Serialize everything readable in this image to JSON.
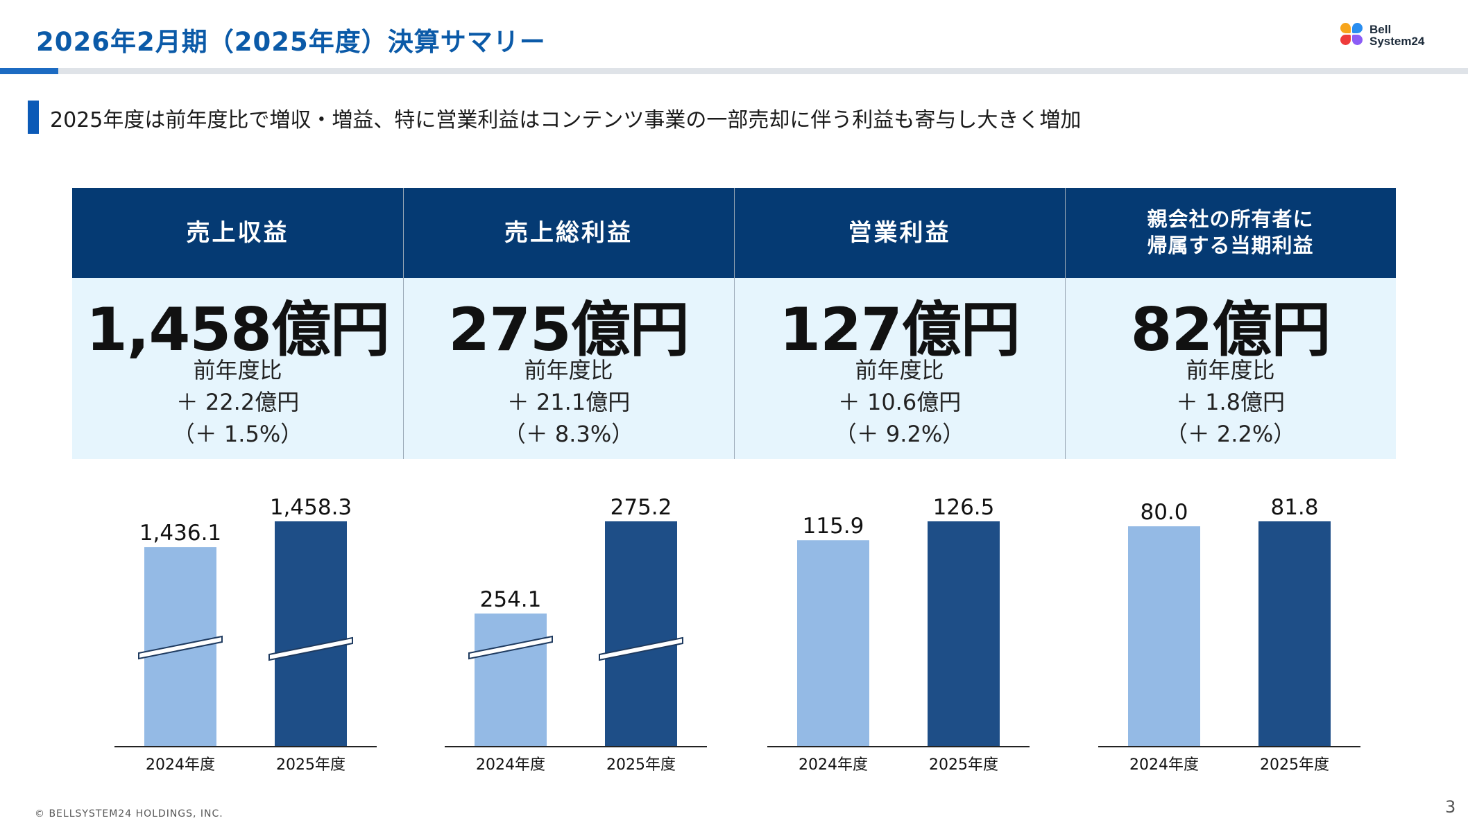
{
  "header": {
    "title": "2026年2月期（2025年度）決算サマリー",
    "logo_text_line1": "Bell",
    "logo_text_line2": "System24"
  },
  "subtitle": "2025年度は前年度比で増収・増益、特に営業利益はコンテンツ事業の一部売却に伴う利益も寄与し大きく増加",
  "kpis": [
    {
      "head_line1": "売上収益",
      "head_line2": "",
      "big": "1,458億円",
      "cmp_label": "前年度比",
      "diff": "＋ 22.2億円",
      "pct": "（＋ 1.5%）"
    },
    {
      "head_line1": "売上総利益",
      "head_line2": "",
      "big": "275億円",
      "cmp_label": "前年度比",
      "diff": "＋ 21.1億円",
      "pct": "（＋ 8.3%）"
    },
    {
      "head_line1": "営業利益",
      "head_line2": "",
      "big": "127億円",
      "cmp_label": "前年度比",
      "diff": "＋ 10.6億円",
      "pct": "（＋ 9.2%）"
    },
    {
      "head_line1": "親会社の所有者に",
      "head_line2": "帰属する当期利益",
      "big": "82億円",
      "cmp_label": "前年度比",
      "diff": "＋ 1.8億円",
      "pct": "（＋ 2.2%）"
    }
  ],
  "chart_data": [
    {
      "type": "bar",
      "categories": [
        "2024年度",
        "2025年度"
      ],
      "values": [
        1436.1,
        1458.3
      ],
      "value_labels": [
        "1,436.1",
        "1,458.3"
      ],
      "axis_break": true,
      "colors": [
        "#94bae5",
        "#1e4e87"
      ]
    },
    {
      "type": "bar",
      "categories": [
        "2024年度",
        "2025年度"
      ],
      "values": [
        254.1,
        275.2
      ],
      "value_labels": [
        "254.1",
        "275.2"
      ],
      "axis_break": true,
      "colors": [
        "#94bae5",
        "#1e4e87"
      ]
    },
    {
      "type": "bar",
      "categories": [
        "2024年度",
        "2025年度"
      ],
      "values": [
        115.9,
        126.5
      ],
      "value_labels": [
        "115.9",
        "126.5"
      ],
      "axis_break": false,
      "colors": [
        "#94bae5",
        "#1e4e87"
      ]
    },
    {
      "type": "bar",
      "categories": [
        "2024年度",
        "2025年度"
      ],
      "values": [
        80.0,
        81.8
      ],
      "value_labels": [
        "80.0",
        "81.8"
      ],
      "axis_break": false,
      "colors": [
        "#94bae5",
        "#1e4e87"
      ]
    }
  ],
  "footer": {
    "copyright": "© BELLSYSTEM24 HOLDINGS, INC.",
    "page_number": "3"
  },
  "colors": {
    "title": "#0b5aa8",
    "table_header": "#053a73",
    "table_body": "#e6f5fd",
    "bar_prev": "#94bae5",
    "bar_curr": "#1e4e87"
  }
}
